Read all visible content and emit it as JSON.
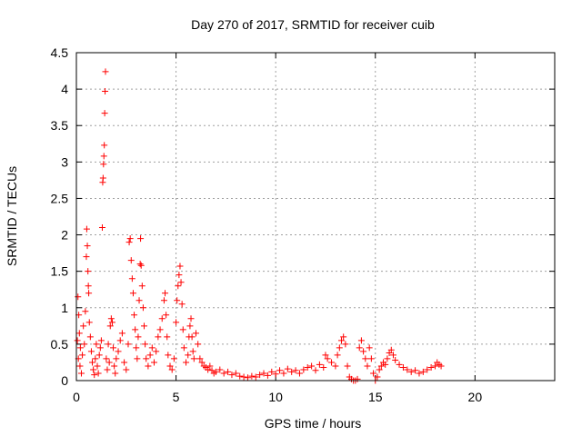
{
  "chart_data": {
    "type": "scatter",
    "title": "Day 270 of 2017, SRMTID for receiver cuib",
    "xlabel": "GPS time / hours",
    "ylabel": "SRMTID / TECUs",
    "xlim": [
      0,
      24
    ],
    "ylim": [
      0,
      4.5
    ],
    "xticks": [
      0,
      5,
      10,
      15,
      20
    ],
    "yticks": [
      0,
      0.5,
      1,
      1.5,
      2,
      2.5,
      3,
      3.5,
      4,
      4.5
    ],
    "grid": true,
    "marker": "+",
    "color": "#ff0000",
    "series": [
      {
        "name": "SRMTID",
        "points": [
          [
            0.05,
            0.55
          ],
          [
            0.08,
            1.15
          ],
          [
            0.1,
            0.3
          ],
          [
            0.12,
            0.9
          ],
          [
            0.15,
            0.65
          ],
          [
            0.18,
            0.2
          ],
          [
            0.2,
            0.45
          ],
          [
            0.25,
            0.1
          ],
          [
            0.3,
            0.35
          ],
          [
            0.35,
            0.75
          ],
          [
            0.4,
            0.5
          ],
          [
            0.45,
            0.95
          ],
          [
            0.5,
            1.7
          ],
          [
            0.52,
            2.08
          ],
          [
            0.55,
            1.85
          ],
          [
            0.58,
            1.5
          ],
          [
            0.6,
            1.3
          ],
          [
            0.62,
            1.2
          ],
          [
            0.65,
            0.8
          ],
          [
            0.7,
            0.6
          ],
          [
            0.75,
            0.4
          ],
          [
            0.8,
            0.25
          ],
          [
            0.85,
            0.15
          ],
          [
            0.9,
            0.08
          ],
          [
            0.95,
            0.3
          ],
          [
            1.0,
            0.5
          ],
          [
            1.05,
            0.2
          ],
          [
            1.1,
            0.1
          ],
          [
            1.15,
            0.35
          ],
          [
            1.2,
            0.45
          ],
          [
            1.25,
            0.55
          ],
          [
            1.3,
            2.1
          ],
          [
            1.32,
            2.72
          ],
          [
            1.34,
            2.78
          ],
          [
            1.36,
            2.97
          ],
          [
            1.38,
            3.08
          ],
          [
            1.4,
            3.23
          ],
          [
            1.42,
            3.67
          ],
          [
            1.44,
            3.97
          ],
          [
            1.46,
            4.24
          ],
          [
            1.5,
            0.3
          ],
          [
            1.55,
            0.15
          ],
          [
            1.6,
            0.5
          ],
          [
            1.65,
            0.25
          ],
          [
            1.7,
            0.75
          ],
          [
            1.75,
            0.85
          ],
          [
            1.8,
            0.8
          ],
          [
            1.85,
            0.45
          ],
          [
            1.9,
            0.2
          ],
          [
            1.95,
            0.1
          ],
          [
            2.0,
            0.3
          ],
          [
            2.1,
            0.4
          ],
          [
            2.2,
            0.55
          ],
          [
            2.3,
            0.65
          ],
          [
            2.4,
            0.25
          ],
          [
            2.5,
            0.15
          ],
          [
            2.6,
            0.5
          ],
          [
            2.65,
            1.9
          ],
          [
            2.7,
            1.95
          ],
          [
            2.75,
            1.65
          ],
          [
            2.8,
            1.4
          ],
          [
            2.85,
            1.2
          ],
          [
            2.9,
            0.9
          ],
          [
            2.95,
            0.7
          ],
          [
            3.0,
            0.45
          ],
          [
            3.05,
            0.3
          ],
          [
            3.1,
            0.6
          ],
          [
            3.15,
            1.1
          ],
          [
            3.2,
            1.6
          ],
          [
            3.22,
            1.95
          ],
          [
            3.25,
            1.58
          ],
          [
            3.3,
            1.3
          ],
          [
            3.35,
            1.0
          ],
          [
            3.4,
            0.75
          ],
          [
            3.45,
            0.5
          ],
          [
            3.5,
            0.3
          ],
          [
            3.6,
            0.2
          ],
          [
            3.7,
            0.35
          ],
          [
            3.8,
            0.45
          ],
          [
            3.9,
            0.25
          ],
          [
            4.0,
            0.4
          ],
          [
            4.1,
            0.6
          ],
          [
            4.2,
            0.7
          ],
          [
            4.3,
            0.85
          ],
          [
            4.4,
            1.1
          ],
          [
            4.45,
            1.2
          ],
          [
            4.5,
            0.9
          ],
          [
            4.55,
            0.6
          ],
          [
            4.6,
            0.35
          ],
          [
            4.7,
            0.2
          ],
          [
            4.8,
            0.15
          ],
          [
            4.9,
            0.3
          ],
          [
            5.0,
            0.8
          ],
          [
            5.05,
            1.1
          ],
          [
            5.1,
            1.3
          ],
          [
            5.15,
            1.45
          ],
          [
            5.2,
            1.57
          ],
          [
            5.25,
            1.35
          ],
          [
            5.3,
            1.05
          ],
          [
            5.35,
            0.7
          ],
          [
            5.4,
            0.45
          ],
          [
            5.5,
            0.25
          ],
          [
            5.6,
            0.35
          ],
          [
            5.65,
            0.6
          ],
          [
            5.7,
            0.75
          ],
          [
            5.75,
            0.85
          ],
          [
            5.8,
            0.6
          ],
          [
            5.85,
            0.4
          ],
          [
            5.9,
            0.3
          ],
          [
            6.0,
            0.65
          ],
          [
            6.1,
            0.5
          ],
          [
            6.2,
            0.3
          ],
          [
            6.3,
            0.25
          ],
          [
            6.4,
            0.2
          ],
          [
            6.5,
            0.18
          ],
          [
            6.6,
            0.15
          ],
          [
            6.7,
            0.2
          ],
          [
            6.8,
            0.14
          ],
          [
            6.9,
            0.1
          ],
          [
            7.0,
            0.12
          ],
          [
            7.2,
            0.15
          ],
          [
            7.4,
            0.1
          ],
          [
            7.6,
            0.12
          ],
          [
            7.8,
            0.08
          ],
          [
            8.0,
            0.1
          ],
          [
            8.2,
            0.06
          ],
          [
            8.4,
            0.05
          ],
          [
            8.6,
            0.04
          ],
          [
            8.8,
            0.06
          ],
          [
            9.0,
            0.05
          ],
          [
            9.2,
            0.08
          ],
          [
            9.4,
            0.1
          ],
          [
            9.6,
            0.07
          ],
          [
            9.8,
            0.12
          ],
          [
            10.0,
            0.09
          ],
          [
            10.2,
            0.14
          ],
          [
            10.4,
            0.1
          ],
          [
            10.6,
            0.16
          ],
          [
            10.8,
            0.12
          ],
          [
            11.0,
            0.14
          ],
          [
            11.2,
            0.1
          ],
          [
            11.4,
            0.15
          ],
          [
            11.6,
            0.18
          ],
          [
            11.8,
            0.2
          ],
          [
            12.0,
            0.14
          ],
          [
            12.2,
            0.22
          ],
          [
            12.4,
            0.18
          ],
          [
            12.5,
            0.35
          ],
          [
            12.6,
            0.3
          ],
          [
            12.8,
            0.25
          ],
          [
            13.0,
            0.2
          ],
          [
            13.1,
            0.35
          ],
          [
            13.2,
            0.45
          ],
          [
            13.3,
            0.55
          ],
          [
            13.4,
            0.6
          ],
          [
            13.5,
            0.5
          ],
          [
            13.6,
            0.2
          ],
          [
            13.7,
            0.05
          ],
          [
            13.8,
            0.02
          ],
          [
            13.9,
            0.0
          ],
          [
            14.0,
            0.0
          ],
          [
            14.1,
            0.02
          ],
          [
            14.2,
            0.45
          ],
          [
            14.3,
            0.55
          ],
          [
            14.4,
            0.4
          ],
          [
            14.5,
            0.3
          ],
          [
            14.6,
            0.2
          ],
          [
            14.7,
            0.45
          ],
          [
            14.8,
            0.3
          ],
          [
            14.9,
            0.1
          ],
          [
            15.0,
            0.0
          ],
          [
            15.1,
            0.05
          ],
          [
            15.2,
            0.15
          ],
          [
            15.3,
            0.2
          ],
          [
            15.4,
            0.25
          ],
          [
            15.5,
            0.22
          ],
          [
            15.6,
            0.3
          ],
          [
            15.7,
            0.38
          ],
          [
            15.8,
            0.42
          ],
          [
            15.9,
            0.35
          ],
          [
            16.0,
            0.28
          ],
          [
            16.2,
            0.22
          ],
          [
            16.4,
            0.18
          ],
          [
            16.6,
            0.15
          ],
          [
            16.8,
            0.12
          ],
          [
            17.0,
            0.14
          ],
          [
            17.2,
            0.1
          ],
          [
            17.4,
            0.12
          ],
          [
            17.6,
            0.15
          ],
          [
            17.8,
            0.18
          ],
          [
            18.0,
            0.2
          ],
          [
            18.1,
            0.25
          ],
          [
            18.2,
            0.22
          ],
          [
            18.3,
            0.2
          ]
        ]
      }
    ]
  }
}
